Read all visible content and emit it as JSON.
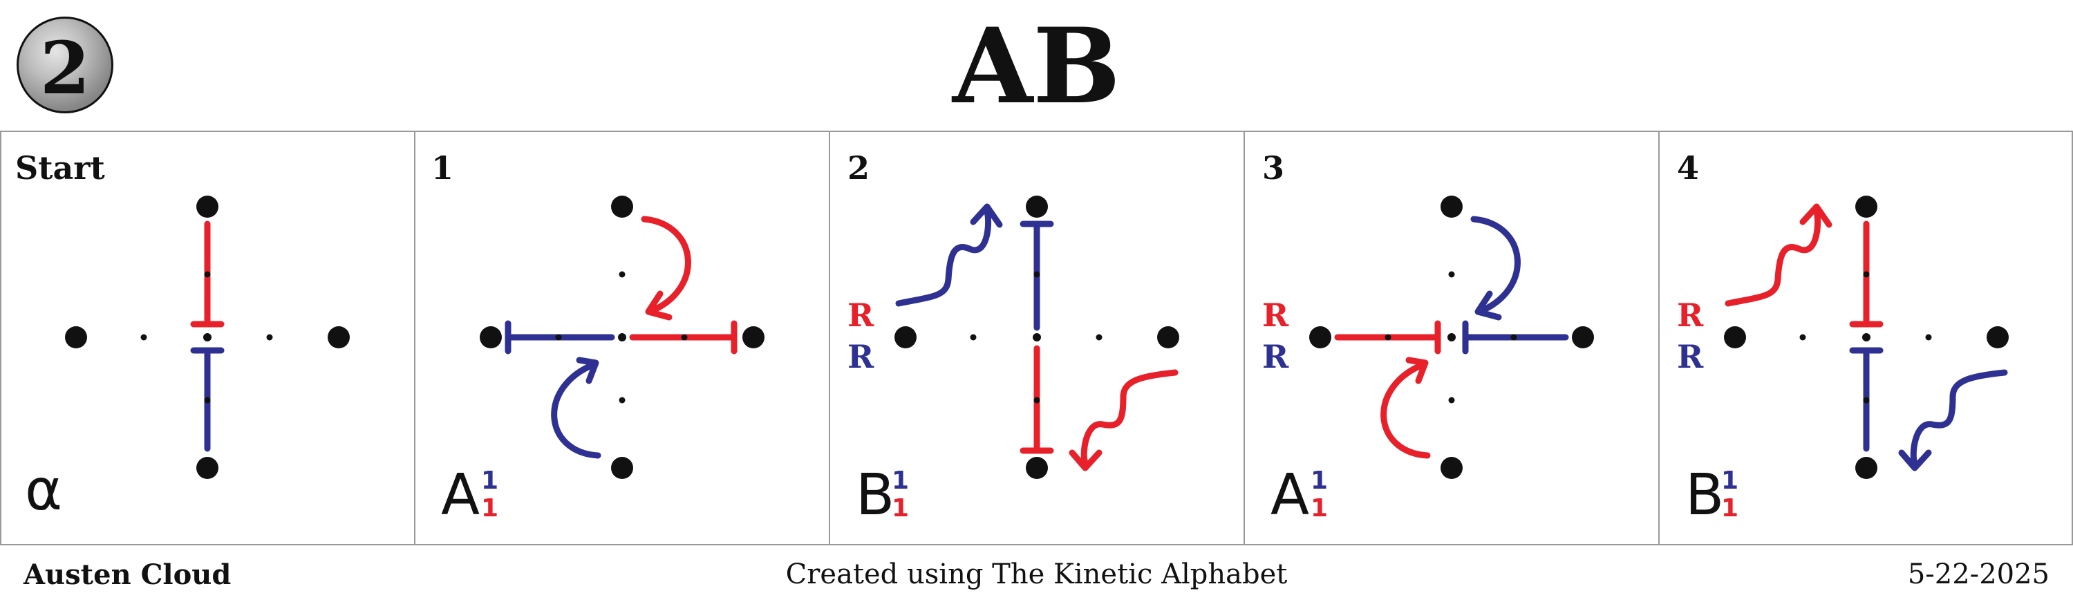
{
  "badge": {
    "number": "2"
  },
  "title": "AB",
  "colors": {
    "red": "#e8202a",
    "blue": "#2e3192",
    "black": "#111111"
  },
  "panels": [
    {
      "label": "Start",
      "glyph": "α"
    },
    {
      "label": "1",
      "glyph": "A",
      "sub_top": "1",
      "sub_bottom": "1"
    },
    {
      "label": "2",
      "glyph": "B",
      "sub_top": "1",
      "sub_bottom": "1",
      "r_top": "R",
      "r_bottom": "R"
    },
    {
      "label": "3",
      "glyph": "A",
      "sub_top": "1",
      "sub_bottom": "1",
      "r_top": "R",
      "r_bottom": "R"
    },
    {
      "label": "4",
      "glyph": "B",
      "sub_top": "1",
      "sub_bottom": "1",
      "r_top": "R",
      "r_bottom": "R"
    }
  ],
  "footer": {
    "author": "Austen Cloud",
    "credit": "Created using The Kinetic Alphabet",
    "date": "5-22-2025"
  }
}
